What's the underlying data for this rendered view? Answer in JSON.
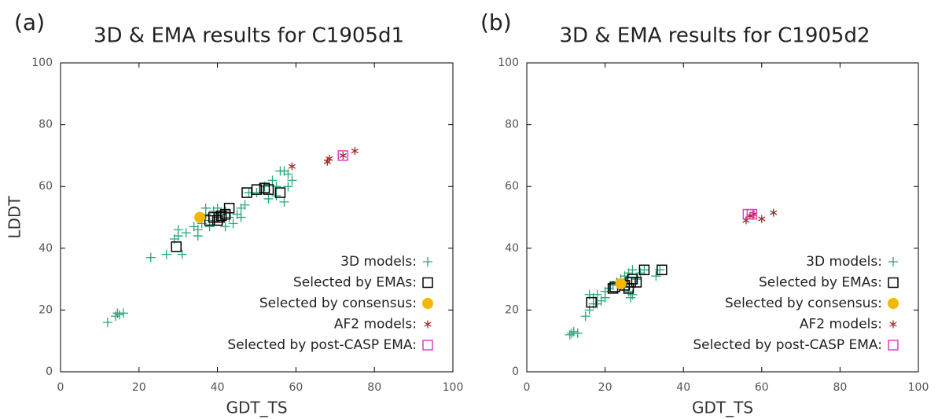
{
  "chart_data": [
    {
      "type": "scatter",
      "panel": "(a)",
      "title": "3D & EMA results for C1905d1",
      "xlabel": "GDT_TS",
      "ylabel": "LDDT",
      "xlim": [
        0,
        100
      ],
      "ylim": [
        0,
        100
      ],
      "xticks": [
        0,
        20,
        40,
        60,
        80,
        100
      ],
      "yticks": [
        0,
        20,
        40,
        60,
        80,
        100
      ],
      "legend": "lower right",
      "series": [
        {
          "name": "3D models:",
          "color": "#27a77a",
          "marker": "plus",
          "x": [
            12,
            14,
            14.5,
            15,
            16,
            23,
            27,
            29,
            30,
            30,
            31,
            32,
            34,
            35,
            35,
            36,
            36,
            37,
            37,
            38,
            39,
            40,
            40,
            41,
            42,
            43,
            44,
            45,
            46,
            46,
            47,
            48,
            50,
            52,
            54,
            55,
            55,
            56,
            57,
            58,
            58,
            59,
            57,
            53,
            42,
            38
          ],
          "y": [
            16,
            18,
            19,
            18.5,
            19,
            37,
            38,
            43,
            46,
            44,
            38,
            45,
            47,
            44,
            46,
            50,
            48,
            51,
            53,
            49,
            52,
            53,
            50,
            51,
            52,
            50,
            48,
            51,
            50,
            53,
            54,
            58,
            58,
            60,
            62,
            60,
            57,
            65,
            65,
            64,
            60,
            62,
            55,
            56,
            47,
            47
          ]
        },
        {
          "name": "Selected by EMAs:",
          "color": "#000000",
          "marker": "square",
          "x": [
            29.5,
            38,
            39,
            40,
            40.5,
            41,
            42,
            43,
            47.5,
            50,
            52,
            53,
            56
          ],
          "y": [
            40.5,
            49,
            50,
            49,
            50,
            50.5,
            51,
            53,
            58,
            59,
            59.5,
            59,
            58
          ]
        },
        {
          "name": "Selected by consensus:",
          "color": "#f5b800",
          "marker": "circle",
          "x": [
            35.5
          ],
          "y": [
            50
          ]
        },
        {
          "name": "AF2 models:",
          "color": "#a52a2a",
          "marker": "asterisk",
          "x": [
            59,
            68,
            68.5,
            72,
            75
          ],
          "y": [
            66.5,
            68,
            69,
            70,
            71.5
          ]
        },
        {
          "name": "Selected by post-CASP EMA:",
          "color": "#e23fc4",
          "marker": "square",
          "x": [
            72
          ],
          "y": [
            70
          ]
        }
      ]
    },
    {
      "type": "scatter",
      "panel": "(b)",
      "title": "3D & EMA results for C1905d2",
      "xlabel": "GDT_TS",
      "xlim": [
        0,
        100
      ],
      "ylim": [
        0,
        100
      ],
      "xticks": [
        0,
        20,
        40,
        60,
        80,
        100
      ],
      "yticks": [
        0,
        20,
        40,
        60,
        80,
        100
      ],
      "legend": "lower right",
      "series": [
        {
          "name": "3D models:",
          "color": "#27a77a",
          "marker": "plus",
          "x": [
            11,
            11.5,
            12,
            13,
            15,
            16,
            17,
            17,
            18,
            18,
            19,
            20,
            21,
            22,
            23,
            24,
            25,
            25,
            26,
            26,
            27,
            26.5,
            28,
            29,
            33,
            34,
            30,
            20,
            16,
            27
          ],
          "y": [
            12,
            12.5,
            13,
            12.5,
            18,
            20,
            22,
            24,
            25,
            22,
            23,
            24,
            27,
            28,
            29,
            30,
            28,
            31,
            32,
            26,
            33,
            24,
            30,
            32,
            31,
            33,
            33,
            26,
            25,
            25
          ]
        },
        {
          "name": "Selected by EMAs:",
          "color": "#000000",
          "marker": "square",
          "x": [
            16.5,
            22,
            22.5,
            25,
            26,
            26.5,
            27,
            28,
            30,
            34.5
          ],
          "y": [
            22.5,
            27,
            27.5,
            28,
            27,
            29,
            30,
            29,
            33,
            33
          ]
        },
        {
          "name": "Selected by consensus:",
          "color": "#f5b800",
          "marker": "circle",
          "x": [
            24
          ],
          "y": [
            28.5
          ]
        },
        {
          "name": "AF2 models:",
          "color": "#a52a2a",
          "marker": "asterisk",
          "x": [
            56,
            57,
            58,
            60,
            63
          ],
          "y": [
            49,
            50.5,
            51,
            49.5,
            51.5
          ]
        },
        {
          "name": "Selected by post-CASP EMA:",
          "color": "#e23fc4",
          "marker": "square",
          "x": [
            56.5,
            57.5
          ],
          "y": [
            51,
            51
          ]
        }
      ]
    }
  ]
}
